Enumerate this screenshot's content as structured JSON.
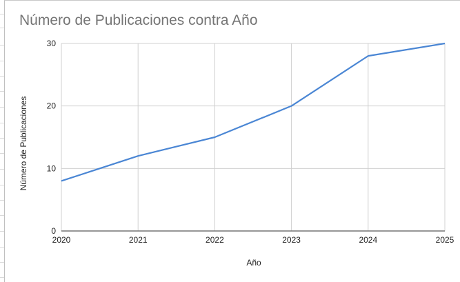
{
  "chart_data": {
    "type": "line",
    "title": "Número de Publicaciones contra Año",
    "xlabel": "Año",
    "ylabel": "Número de Publicaciones",
    "categories": [
      "2020",
      "2021",
      "2022",
      "2023",
      "2024",
      "2025"
    ],
    "series": [
      {
        "name": "Número de Publicaciones",
        "values": [
          8,
          12,
          15,
          20,
          28,
          30
        ],
        "color": "#4a86d4"
      }
    ],
    "yticks": [
      "0",
      "10",
      "20",
      "30"
    ],
    "ylim": [
      0,
      30
    ],
    "grid": true,
    "legend": "none"
  }
}
